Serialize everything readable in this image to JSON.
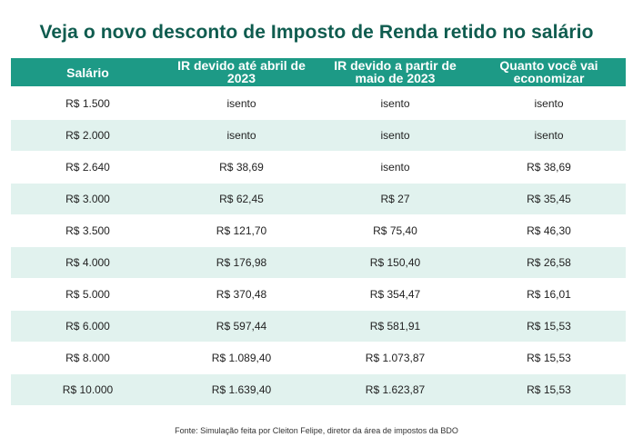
{
  "title": "Veja o novo desconto de Imposto de Renda retido no salário",
  "headers": [
    "Salário",
    "IR devido até abril de 2023",
    "IR devido a partir de maio de 2023",
    "Quanto você vai economizar"
  ],
  "rows": [
    [
      "R$ 1.500",
      "isento",
      "isento",
      "isento"
    ],
    [
      "R$ 2.000",
      "isento",
      "isento",
      "isento"
    ],
    [
      "R$ 2.640",
      "R$ 38,69",
      "isento",
      "R$ 38,69"
    ],
    [
      "R$ 3.000",
      "R$ 62,45",
      "R$ 27",
      "R$ 35,45"
    ],
    [
      "R$ 3.500",
      "R$ 121,70",
      "R$ 75,40",
      "R$ 46,30"
    ],
    [
      "R$ 4.000",
      "R$ 176,98",
      "R$ 150,40",
      "R$ 26,58"
    ],
    [
      "R$ 5.000",
      "R$ 370,48",
      "R$ 354,47",
      "R$ 16,01"
    ],
    [
      "R$ 6.000",
      "R$ 597,44",
      "R$ 581,91",
      "R$ 15,53"
    ],
    [
      "R$ 8.000",
      "R$ 1.089,40",
      "R$ 1.073,87",
      "R$ 15,53"
    ],
    [
      "R$ 10.000",
      "R$ 1.639,40",
      "R$ 1.623,87",
      "R$ 15,53"
    ]
  ],
  "footer": "Fonte: Simulação feita por Cleiton Felipe, diretor da área de impostos da BDO",
  "colors": {
    "title": "#0f5c4f",
    "header_bg": "#1d9a86",
    "alt_row_bg": "#e1f2ee"
  }
}
